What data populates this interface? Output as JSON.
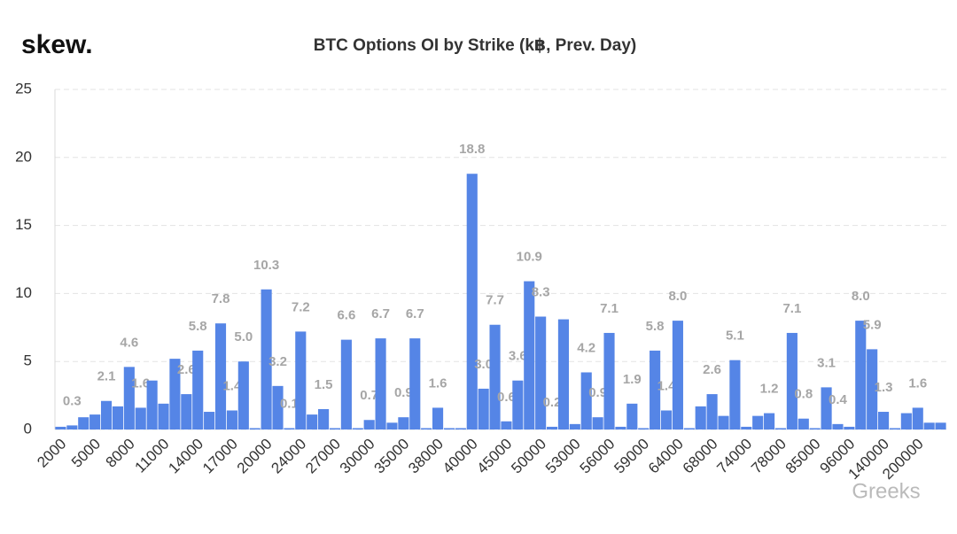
{
  "logo": "skew.",
  "watermark": "Greeks",
  "chart_data": {
    "type": "bar",
    "title": "BTC Options OI by Strike (k฿, Prev. Day)",
    "categories": [
      "2000",
      null,
      null,
      "5000",
      null,
      null,
      "8000",
      null,
      null,
      "11000",
      null,
      null,
      "14000",
      null,
      null,
      "17000",
      null,
      null,
      "20000",
      null,
      null,
      "24000",
      null,
      null,
      "27000",
      null,
      null,
      "30000",
      null,
      null,
      "35000",
      null,
      null,
      "38000",
      null,
      null,
      "40000",
      null,
      null,
      "45000",
      null,
      null,
      "50000",
      null,
      null,
      "53000",
      null,
      null,
      "56000",
      null,
      null,
      "59000",
      null,
      null,
      "64000",
      null,
      null,
      "68000",
      null,
      null,
      "74000",
      null,
      null,
      "78000",
      null,
      null,
      "85000",
      null,
      null,
      "96000",
      null,
      null,
      "140000",
      null,
      null,
      "200000",
      null,
      null
    ],
    "values": [
      0.2,
      0.3,
      0.9,
      1.1,
      2.1,
      1.7,
      4.6,
      1.6,
      3.6,
      1.9,
      5.2,
      2.6,
      5.8,
      1.3,
      7.8,
      1.4,
      5.0,
      0.1,
      10.3,
      3.2,
      0.1,
      7.2,
      1.1,
      1.5,
      0.1,
      6.6,
      0.1,
      0.7,
      6.7,
      0.5,
      0.9,
      6.7,
      0.1,
      1.6,
      0.1,
      0.1,
      18.8,
      3.0,
      7.7,
      0.6,
      3.6,
      10.9,
      8.3,
      0.2,
      8.1,
      0.4,
      4.2,
      0.9,
      7.1,
      0.2,
      1.9,
      0.1,
      5.8,
      1.4,
      8.0,
      0.1,
      1.7,
      2.6,
      1.0,
      5.1,
      0.2,
      1.0,
      1.2,
      0.1,
      7.1,
      0.8,
      0.1,
      3.1,
      0.4,
      0.2,
      8.0,
      5.9,
      1.3,
      0.1,
      1.2,
      1.6,
      0.5,
      0.5
    ],
    "value_labels": [
      null,
      "0.3",
      null,
      null,
      "2.1",
      null,
      "4.6",
      "1.6",
      null,
      null,
      null,
      "2.6",
      "5.8",
      null,
      "7.8",
      "1.4",
      "5.0",
      null,
      "10.3",
      "3.2",
      "0.1",
      "7.2",
      null,
      "1.5",
      null,
      "6.6",
      null,
      "0.7",
      "6.7",
      null,
      "0.9",
      "6.7",
      null,
      "1.6",
      null,
      null,
      "18.8",
      "3.0",
      "7.7",
      "0.6",
      "3.6",
      "10.9",
      "8.3",
      "0.2",
      null,
      null,
      "4.2",
      "0.9",
      "7.1",
      null,
      "1.9",
      null,
      "5.8",
      "1.4",
      "8.0",
      null,
      null,
      "2.6",
      null,
      "5.1",
      null,
      null,
      "1.2",
      null,
      "7.1",
      "0.8",
      null,
      "3.1",
      "0.4",
      null,
      "8.0",
      "5.9",
      "1.3",
      null,
      null,
      "1.6",
      null,
      null
    ],
    "color": "#5585e6",
    "ylim": [
      0,
      25
    ],
    "yticks": [
      0,
      5,
      10,
      15,
      20,
      25
    ],
    "grid": true
  }
}
